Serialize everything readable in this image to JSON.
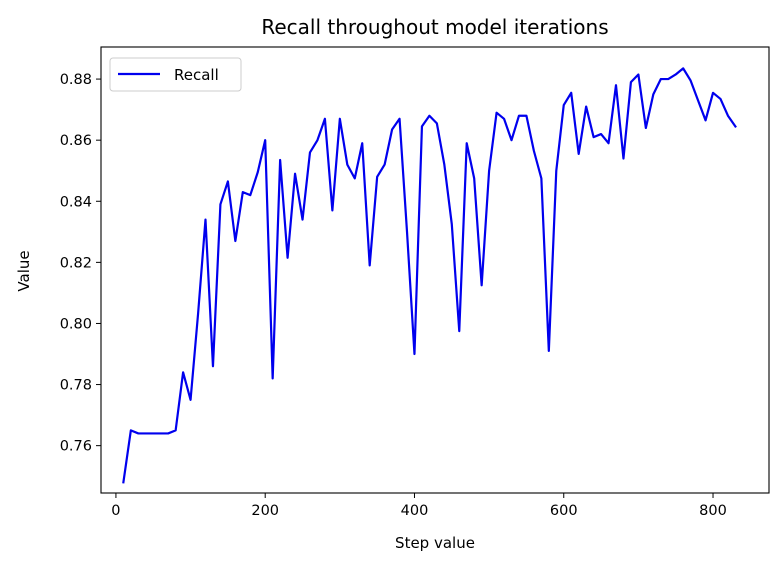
{
  "chart_data": {
    "type": "line",
    "title": "Recall throughout model iterations",
    "xlabel": "Step value",
    "ylabel": "Value",
    "xlim": [
      -20,
      875
    ],
    "ylim": [
      0.7445,
      0.8905
    ],
    "xticks": [
      0,
      200,
      400,
      600,
      800
    ],
    "yticks": [
      0.76,
      0.78,
      0.8,
      0.82,
      0.84,
      0.86,
      0.88
    ],
    "ytick_labels": [
      "0.76",
      "0.78",
      "0.80",
      "0.82",
      "0.84",
      "0.86",
      "0.88"
    ],
    "grid": false,
    "legend_position": "top-left",
    "series": [
      {
        "name": "Recall",
        "color": "#0000ee",
        "x": [
          10,
          20,
          30,
          40,
          50,
          60,
          70,
          80,
          90,
          100,
          110,
          120,
          130,
          140,
          150,
          160,
          170,
          180,
          190,
          200,
          210,
          220,
          230,
          240,
          250,
          260,
          270,
          280,
          290,
          300,
          310,
          320,
          330,
          340,
          350,
          360,
          370,
          380,
          390,
          400,
          410,
          420,
          430,
          440,
          450,
          460,
          470,
          480,
          490,
          500,
          510,
          520,
          530,
          540,
          550,
          560,
          570,
          580,
          590,
          600,
          610,
          620,
          630,
          640,
          650,
          660,
          670,
          680,
          690,
          700,
          710,
          720,
          730,
          740,
          750,
          760,
          770,
          780,
          790,
          800,
          810,
          820,
          830
        ],
        "values": [
          0.748,
          0.765,
          0.764,
          0.764,
          0.764,
          0.764,
          0.764,
          0.765,
          0.784,
          0.775,
          0.803,
          0.834,
          0.786,
          0.839,
          0.8465,
          0.827,
          0.843,
          0.842,
          0.8495,
          0.86,
          0.782,
          0.8535,
          0.8215,
          0.849,
          0.834,
          0.856,
          0.86,
          0.867,
          0.837,
          0.867,
          0.852,
          0.8475,
          0.859,
          0.819,
          0.848,
          0.852,
          0.8635,
          0.867,
          0.83,
          0.79,
          0.8645,
          0.868,
          0.8655,
          0.852,
          0.8325,
          0.7975,
          0.859,
          0.8475,
          0.8125,
          0.85,
          0.869,
          0.867,
          0.86,
          0.868,
          0.868,
          0.8565,
          0.8475,
          0.791,
          0.85,
          0.8715,
          0.8755,
          0.8555,
          0.871,
          0.861,
          0.862,
          0.859,
          0.878,
          0.854,
          0.879,
          0.8815,
          0.864,
          0.875,
          0.88,
          0.88,
          0.8815,
          0.8835,
          0.8795,
          0.873,
          0.8665,
          0.8755,
          0.8735,
          0.868,
          0.8645
        ]
      }
    ]
  }
}
